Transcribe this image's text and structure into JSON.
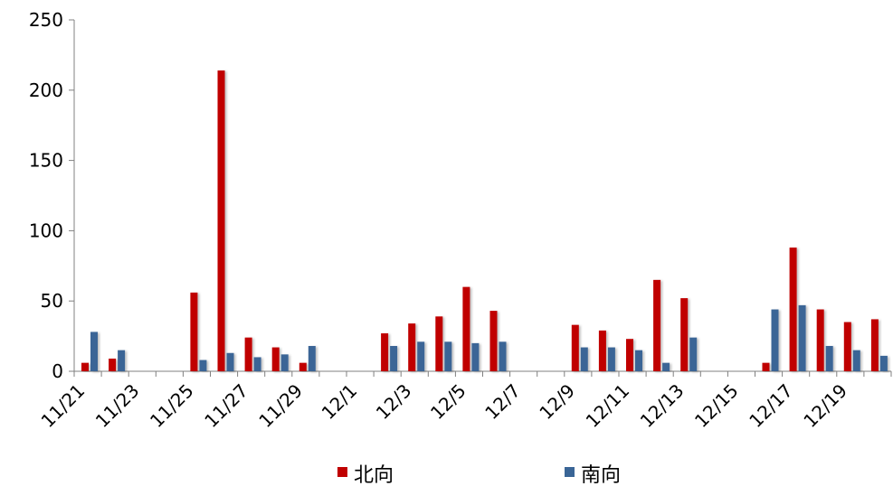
{
  "chart_data": {
    "type": "bar",
    "title": "",
    "xlabel": "",
    "ylabel": "",
    "ylim": [
      0,
      250
    ],
    "yticks": [
      0,
      50,
      100,
      150,
      200,
      250
    ],
    "grid": false,
    "legend_position": "bottom",
    "categories": [
      "11/21",
      "11/22",
      "11/23",
      "11/24",
      "11/25",
      "11/26",
      "11/27",
      "11/28",
      "11/29",
      "11/30",
      "12/1",
      "12/2",
      "12/3",
      "12/4",
      "12/5",
      "12/6",
      "12/7",
      "12/8",
      "12/9",
      "12/10",
      "12/11",
      "12/12",
      "12/13",
      "12/14",
      "12/15",
      "12/16",
      "12/17",
      "12/18",
      "12/19",
      "12/20"
    ],
    "x_tick_labels": [
      "11/21",
      "11/23",
      "11/25",
      "11/27",
      "11/29",
      "12/1",
      "12/3",
      "12/5",
      "12/7",
      "12/9",
      "12/11",
      "12/13",
      "12/15",
      "12/17",
      "12/19"
    ],
    "series": [
      {
        "name": "北向",
        "color": "#C00000",
        "values": [
          6,
          9,
          null,
          null,
          56,
          214,
          24,
          17,
          6,
          null,
          null,
          27,
          34,
          39,
          60,
          43,
          null,
          null,
          33,
          29,
          23,
          65,
          52,
          null,
          null,
          6,
          88,
          44,
          35,
          37
        ]
      },
      {
        "name": "南向",
        "color": "#3A6596",
        "values": [
          28,
          15,
          null,
          null,
          8,
          13,
          10,
          12,
          18,
          null,
          null,
          18,
          21,
          21,
          20,
          21,
          null,
          null,
          17,
          17,
          15,
          6,
          24,
          null,
          null,
          44,
          47,
          18,
          15,
          11
        ]
      }
    ]
  }
}
